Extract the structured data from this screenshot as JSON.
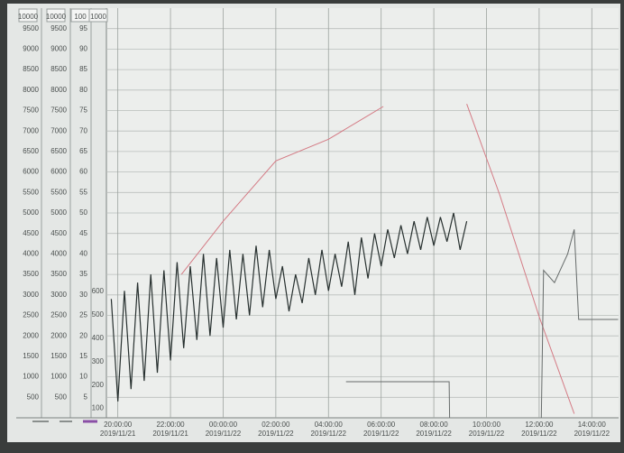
{
  "chart_data": {
    "type": "line",
    "xlim": [
      "2019-11-21 19:34",
      "2019-11-22 15:01"
    ],
    "xticks": [
      {
        "value": "2019-11-21 20:00",
        "label": "20:00:00",
        "date": "2019/11/21"
      },
      {
        "value": "2019-11-21 22:00",
        "label": "22:00:00",
        "date": "2019/11/21"
      },
      {
        "value": "2019-11-22 00:00",
        "label": "00:00:00",
        "date": "2019/11/22"
      },
      {
        "value": "2019-11-22 02:00",
        "label": "02:00:00",
        "date": "2019/11/22"
      },
      {
        "value": "2019-11-22 04:00",
        "label": "04:00:00",
        "date": "2019/11/22"
      },
      {
        "value": "2019-11-22 06:00",
        "label": "06:00:00",
        "date": "2019/11/22"
      },
      {
        "value": "2019-11-22 08:00",
        "label": "08:00:00",
        "date": "2019/11/22"
      },
      {
        "value": "2019-11-22 10:00",
        "label": "10:00:00",
        "date": "2019/11/22"
      },
      {
        "value": "2019-11-22 12:00",
        "label": "12:00:00",
        "date": "2019/11/22"
      },
      {
        "value": "2019-11-22 14:00",
        "label": "14:00:00",
        "date": "2019/11/22"
      }
    ],
    "grid": true,
    "axes": [
      {
        "header": "10000",
        "ylim": [
          0,
          10000
        ],
        "yticks": [
          500,
          1000,
          1500,
          2000,
          2500,
          3000,
          3500,
          4000,
          4500,
          5000,
          5500,
          6000,
          6500,
          7000,
          7500,
          8000,
          8500,
          9000,
          9500
        ]
      },
      {
        "header": "10000",
        "ylim": [
          0,
          10000
        ],
        "yticks": [
          500,
          1000,
          1500,
          2000,
          2500,
          3000,
          3500,
          4000,
          4500,
          5000,
          5500,
          6000,
          6500,
          7000,
          7500,
          8000,
          8500,
          9000,
          9500
        ]
      },
      {
        "header": "100",
        "ylim": [
          0,
          100
        ],
        "yticks": [
          5,
          10,
          15,
          20,
          25,
          30,
          35,
          40,
          45,
          50,
          55,
          60,
          65,
          70,
          75,
          80,
          85,
          90,
          95
        ]
      },
      {
        "header": "1000",
        "ylim": [
          60,
          1810
        ],
        "yticks": [
          100,
          200,
          300,
          400,
          500,
          600
        ]
      }
    ],
    "series": [
      {
        "color": "#27302f",
        "axis": 1,
        "x": [
          "2019-11-21 19:45",
          "2019-11-21 20:00",
          "2019-11-21 20:15",
          "2019-11-21 20:30",
          "2019-11-21 20:45",
          "2019-11-21 21:00",
          "2019-11-21 21:15",
          "2019-11-21 21:30",
          "2019-11-21 21:45",
          "2019-11-21 22:00",
          "2019-11-21 22:15",
          "2019-11-21 22:30",
          "2019-11-21 22:45",
          "2019-11-21 23:00",
          "2019-11-21 23:15",
          "2019-11-21 23:30",
          "2019-11-21 23:45",
          "2019-11-22 00:00",
          "2019-11-22 00:15",
          "2019-11-22 00:30",
          "2019-11-22 00:45",
          "2019-11-22 01:00",
          "2019-11-22 01:15",
          "2019-11-22 01:30",
          "2019-11-22 01:45",
          "2019-11-22 02:00",
          "2019-11-22 02:15",
          "2019-11-22 02:30",
          "2019-11-22 02:45",
          "2019-11-22 03:00",
          "2019-11-22 03:15",
          "2019-11-22 03:30",
          "2019-11-22 03:45",
          "2019-11-22 04:00",
          "2019-11-22 04:15",
          "2019-11-22 04:30",
          "2019-11-22 04:45",
          "2019-11-22 05:00",
          "2019-11-22 05:15",
          "2019-11-22 05:30",
          "2019-11-22 05:45",
          "2019-11-22 06:00",
          "2019-11-22 06:15",
          "2019-11-22 06:30",
          "2019-11-22 06:45",
          "2019-11-22 07:00",
          "2019-11-22 07:15",
          "2019-11-22 07:30",
          "2019-11-22 07:45",
          "2019-11-22 08:00",
          "2019-11-22 08:15",
          "2019-11-22 08:30",
          "2019-11-22 08:45",
          "2019-11-22 09:00",
          "2019-11-22 09:15"
        ],
        "values": [
          2900,
          400,
          3100,
          700,
          3300,
          900,
          3500,
          1100,
          3600,
          1400,
          3800,
          1700,
          3700,
          1900,
          4000,
          2000,
          3900,
          2200,
          4100,
          2400,
          4000,
          2500,
          4200,
          2700,
          4100,
          2900,
          3700,
          2600,
          3500,
          2800,
          3900,
          3000,
          4100,
          3100,
          4000,
          3200,
          4300,
          3000,
          4400,
          3400,
          4500,
          3700,
          4600,
          3900,
          4700,
          4000,
          4800,
          4100,
          4900,
          4200,
          4900,
          4300,
          5000,
          4100,
          4800
        ]
      },
      {
        "color": "#d47a84",
        "axis": 2,
        "x": [
          "2019-11-21 22:25",
          "2019-11-22 00:00",
          "2019-11-22 02:00",
          "2019-11-22 04:00",
          "2019-11-22 06:05",
          "2019-11-22 07:30",
          "2019-11-22 09:15",
          "2019-11-22 10:30",
          "2019-11-22 12:00",
          "2019-11-22 13:20"
        ],
        "values": [
          35,
          48,
          62.7,
          68,
          76,
          null,
          76.6,
          54.5,
          24.7,
          1
        ]
      },
      {
        "color": "#666b6a",
        "axis": 1,
        "x": [
          "2019-11-22 04:40",
          "2019-11-22 08:35",
          "2019-11-22 08:36",
          "2019-11-22 10:00",
          "2019-11-22 12:05",
          "2019-11-22 12:10",
          "2019-11-22 12:35",
          "2019-11-22 13:05",
          "2019-11-22 13:20",
          "2019-11-22 13:30",
          "2019-11-22 15:00"
        ],
        "values": [
          880,
          880,
          0,
          null,
          0,
          3600,
          3300,
          4000,
          4600,
          2400,
          2400
        ]
      }
    ]
  }
}
